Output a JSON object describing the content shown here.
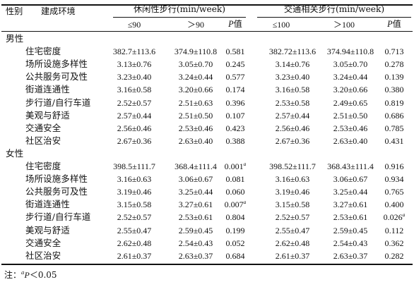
{
  "table": {
    "headers": {
      "gender_col": "性别",
      "env_col": "建成环境",
      "leisure_group": "休闲性步行(min/week)",
      "transport_group": "交通相关步行(min/week)",
      "leisure_low": "≤90",
      "leisure_high": "＞90",
      "p_label": "P",
      "p_suffix": "值",
      "transport_low": "≤100",
      "transport_high": "＞100"
    },
    "sections": [
      {
        "label": "男性",
        "rows": [
          {
            "name": "住宅密度",
            "l_low": "382.7±113.6",
            "l_high": "374.9±110.8",
            "l_p": "0.581",
            "l_sig": "",
            "t_low": "382.72±113.6",
            "t_high": "374.94±110.8",
            "t_p": "0.713",
            "t_sig": ""
          },
          {
            "name": "场所设施多样性",
            "l_low": "3.13±0.76",
            "l_high": "3.05±0.70",
            "l_p": "0.245",
            "l_sig": "",
            "t_low": "3.14±0.76",
            "t_high": "3.05±0.70",
            "t_p": "0.278",
            "t_sig": ""
          },
          {
            "name": "公共服务可及性",
            "l_low": "3.23±0.40",
            "l_high": "3.24±0.44",
            "l_p": "0.577",
            "l_sig": "",
            "t_low": "3.23±0.40",
            "t_high": "3.24±0.44",
            "t_p": "0.139",
            "t_sig": ""
          },
          {
            "name": "街道连通性",
            "l_low": "3.16±0.58",
            "l_high": "3.20±0.66",
            "l_p": "0.174",
            "l_sig": "",
            "t_low": "3.16±0.58",
            "t_high": "3.20±0.66",
            "t_p": "0.380",
            "t_sig": ""
          },
          {
            "name": "步行道/自行车道",
            "l_low": "2.52±0.57",
            "l_high": "2.51±0.63",
            "l_p": "0.396",
            "l_sig": "",
            "t_low": "2.53±0.58",
            "t_high": "2.49±0.65",
            "t_p": "0.819",
            "t_sig": ""
          },
          {
            "name": "美观与舒适",
            "l_low": "2.57±0.44",
            "l_high": "2.51±0.50",
            "l_p": "0.107",
            "l_sig": "",
            "t_low": "2.57±0.44",
            "t_high": "2.51±0.50",
            "t_p": "0.686",
            "t_sig": ""
          },
          {
            "name": "交通安全",
            "l_low": "2.56±0.46",
            "l_high": "2.53±0.46",
            "l_p": "0.423",
            "l_sig": "",
            "t_low": "2.56±0.46",
            "t_high": "2.53±0.46",
            "t_p": "0.785",
            "t_sig": ""
          },
          {
            "name": "社区治安",
            "l_low": "2.67±0.36",
            "l_high": "2.63±0.40",
            "l_p": "0.388",
            "l_sig": "",
            "t_low": "2.67±0.36",
            "t_high": "2.63±0.40",
            "t_p": "0.431",
            "t_sig": ""
          }
        ]
      },
      {
        "label": "女性",
        "rows": [
          {
            "name": "住宅密度",
            "l_low": "398.5±111.7",
            "l_high": "368.4±111.4",
            "l_p": "0.001",
            "l_sig": "a",
            "t_low": "398.52±111.7",
            "t_high": "368.43±111.4",
            "t_p": "0.916",
            "t_sig": ""
          },
          {
            "name": "场所设施多样性",
            "l_low": "3.16±0.63",
            "l_high": "3.06±0.67",
            "l_p": "0.081",
            "l_sig": "",
            "t_low": "3.16±0.63",
            "t_high": "3.06±0.67",
            "t_p": "0.934",
            "t_sig": ""
          },
          {
            "name": "公共服务可及性",
            "l_low": "3.19±0.46",
            "l_high": "3.25±0.44",
            "l_p": "0.060",
            "l_sig": "",
            "t_low": "3.19±0.46",
            "t_high": "3.25±0.44",
            "t_p": "0.765",
            "t_sig": ""
          },
          {
            "name": "街道连通性",
            "l_low": "3.15±0.58",
            "l_high": "3.27±0.61",
            "l_p": "0.007",
            "l_sig": "a",
            "t_low": "3.15±0.58",
            "t_high": "3.27±0.61",
            "t_p": "0.400",
            "t_sig": ""
          },
          {
            "name": "步行道/自行车道",
            "l_low": "2.52±0.57",
            "l_high": "2.53±0.61",
            "l_p": "0.804",
            "l_sig": "",
            "t_low": "2.52±0.57",
            "t_high": "2.53±0.61",
            "t_p": "0.026",
            "t_sig": "a"
          },
          {
            "name": "美观与舒适",
            "l_low": "2.55±0.47",
            "l_high": "2.59±0.45",
            "l_p": "0.199",
            "l_sig": "",
            "t_low": "2.55±0.47",
            "t_high": "2.59±0.45",
            "t_p": "0.112",
            "t_sig": ""
          },
          {
            "name": "交通安全",
            "l_low": "2.62±0.48",
            "l_high": "2.54±0.43",
            "l_p": "0.052",
            "l_sig": "",
            "t_low": "2.62±0.48",
            "t_high": "2.54±0.43",
            "t_p": "0.362",
            "t_sig": ""
          },
          {
            "name": "社区治安",
            "l_low": "2.61±0.37",
            "l_high": "2.63±0.37",
            "l_p": "0.684",
            "l_sig": "",
            "t_low": "2.61±0.37",
            "t_high": "2.63±0.37",
            "t_p": "0.282",
            "t_sig": ""
          }
        ]
      }
    ],
    "note": {
      "prefix": "注：",
      "sup": "a",
      "p": "P",
      "rest": "＜0.05"
    }
  }
}
